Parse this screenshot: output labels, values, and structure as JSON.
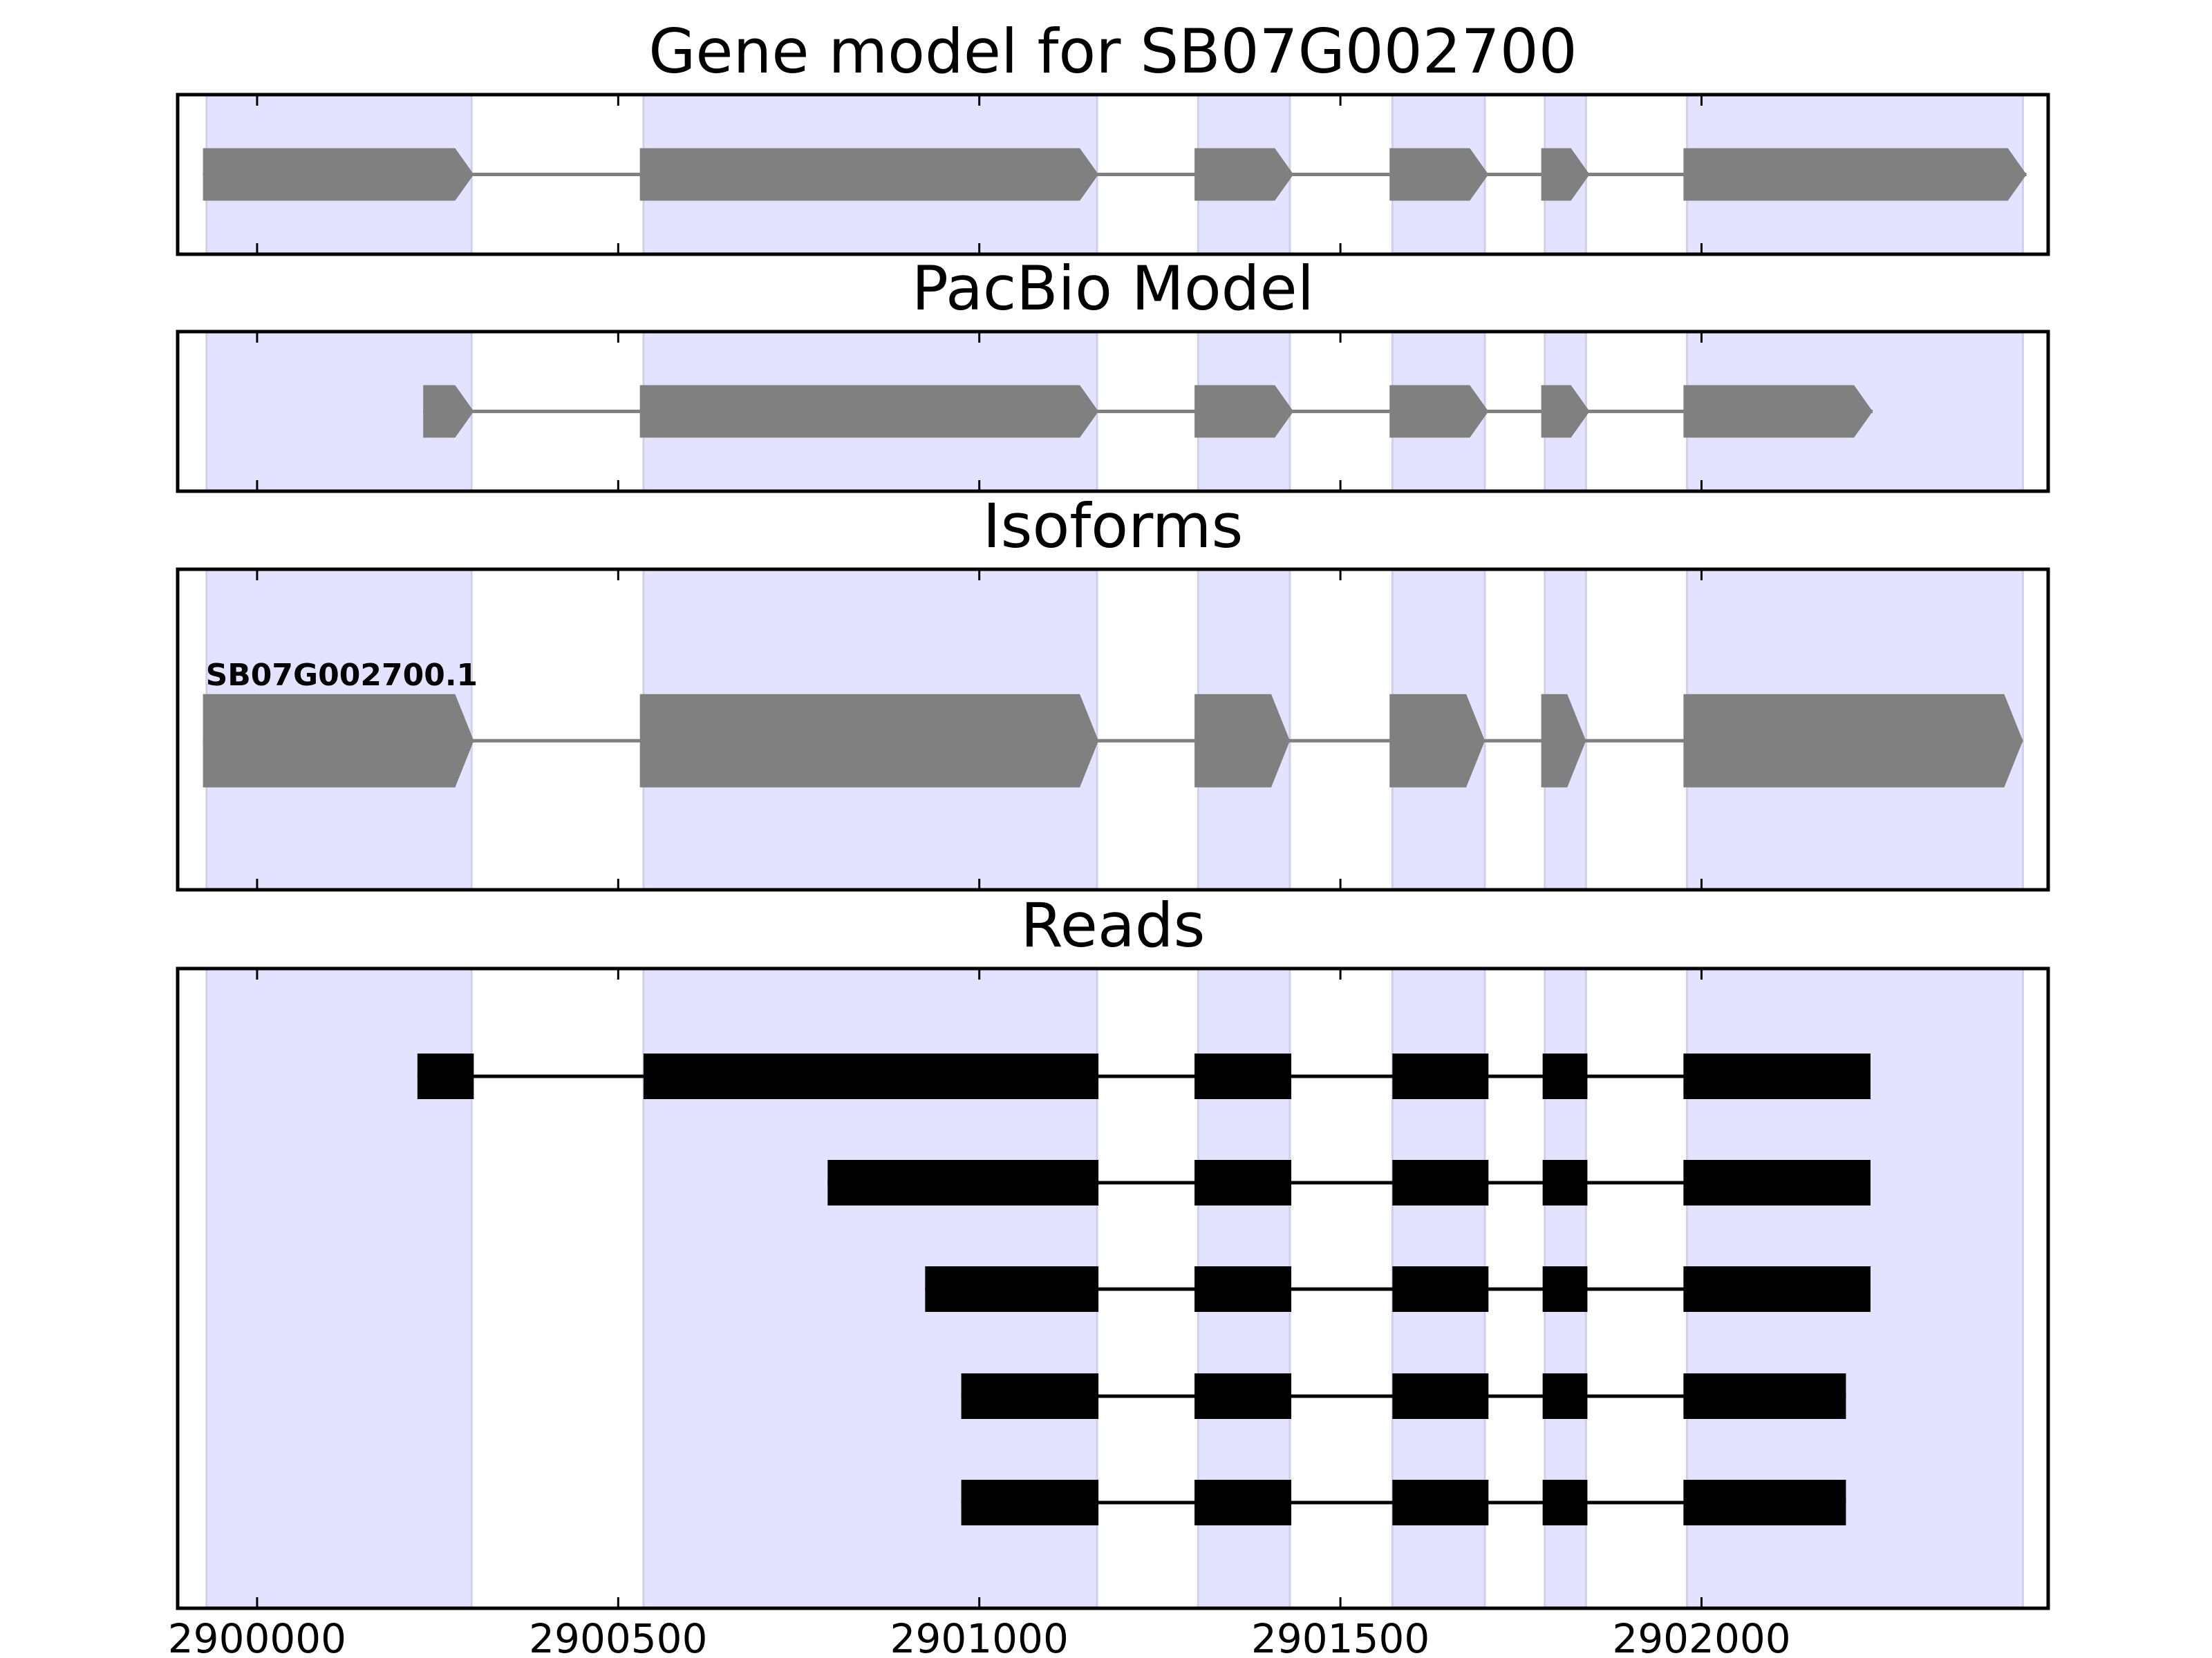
{
  "chart_data": {
    "type": "gene-model-tracks",
    "xlim": [
      2899890,
      2902480
    ],
    "x_ticks": [
      2900000,
      2900500,
      2901000,
      2901500,
      2902000
    ],
    "x_tick_labels": [
      "2900000",
      "2900500",
      "2901000",
      "2901500",
      "2902000"
    ],
    "grid": false,
    "exon_highlight_color": "#e3e3ff",
    "exon_highlight_regions": [
      [
        2899930,
        2900297
      ],
      [
        2900535,
        2901163
      ],
      [
        2901303,
        2901430
      ],
      [
        2901572,
        2901700
      ],
      [
        2901783,
        2901840
      ],
      [
        2901980,
        2902445
      ]
    ],
    "panels": [
      {
        "title": "Gene model for SB07G002700",
        "feature_color": "#808080",
        "features": [
          {
            "strand": "+",
            "exons": [
              [
                2899925,
                2900300
              ],
              [
                2900530,
                2901165
              ],
              [
                2901298,
                2901435
              ],
              [
                2901568,
                2901705
              ],
              [
                2901778,
                2901845
              ],
              [
                2901975,
                2902450
              ]
            ]
          }
        ]
      },
      {
        "title": "PacBio Model",
        "feature_color": "#808080",
        "features": [
          {
            "strand": "+",
            "exons": [
              [
                2900230,
                2900300
              ],
              [
                2900530,
                2901165
              ],
              [
                2901298,
                2901435
              ],
              [
                2901568,
                2901705
              ],
              [
                2901778,
                2901845
              ],
              [
                2901975,
                2902237
              ]
            ]
          }
        ]
      },
      {
        "title": "Isoforms",
        "feature_color": "#808080",
        "features": [
          {
            "label": "SB07G002700.1",
            "strand": "+",
            "exons": [
              [
                2899925,
                2900300
              ],
              [
                2900530,
                2901165
              ],
              [
                2901298,
                2901430
              ],
              [
                2901568,
                2901700
              ],
              [
                2901778,
                2901840
              ],
              [
                2901975,
                2902445
              ]
            ]
          }
        ]
      },
      {
        "title": "Reads",
        "feature_color": "#000000",
        "features": [
          {
            "exons": [
              [
                2900222,
                2900300
              ],
              [
                2900535,
                2901165
              ],
              [
                2901298,
                2901432
              ],
              [
                2901572,
                2901705
              ],
              [
                2901780,
                2901842
              ],
              [
                2901975,
                2902234
              ]
            ]
          },
          {
            "exons": [
              [
                2900790,
                2901165
              ],
              [
                2901298,
                2901432
              ],
              [
                2901572,
                2901705
              ],
              [
                2901780,
                2901842
              ],
              [
                2901975,
                2902234
              ]
            ]
          },
          {
            "exons": [
              [
                2900925,
                2901165
              ],
              [
                2901298,
                2901432
              ],
              [
                2901572,
                2901705
              ],
              [
                2901780,
                2901842
              ],
              [
                2901975,
                2902234
              ]
            ]
          },
          {
            "exons": [
              [
                2900975,
                2901165
              ],
              [
                2901298,
                2901432
              ],
              [
                2901572,
                2901705
              ],
              [
                2901780,
                2901842
              ],
              [
                2901975,
                2902200
              ]
            ]
          },
          {
            "exons": [
              [
                2900975,
                2901165
              ],
              [
                2901298,
                2901432
              ],
              [
                2901572,
                2901705
              ],
              [
                2901780,
                2901842
              ],
              [
                2901975,
                2902200
              ]
            ]
          }
        ]
      }
    ]
  }
}
